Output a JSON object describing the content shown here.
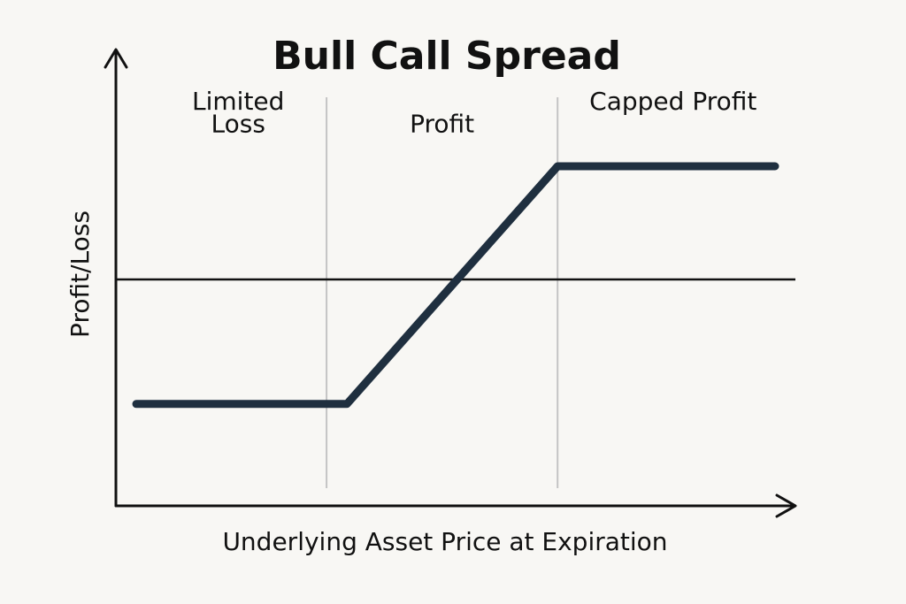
{
  "chart_data": {
    "type": "line",
    "title": "Bull Call Spread",
    "xlabel": "Underlying Asset Price at Expiration",
    "ylabel": "Profit/Loss",
    "grid": false,
    "legend": "none",
    "xlim": [
      0,
      100
    ],
    "ylim": [
      -10,
      10
    ],
    "zero_line": 0,
    "dividers": [
      31,
      65
    ],
    "regions": [
      {
        "lines": [
          "Limited",
          "Loss"
        ],
        "x": 18,
        "y": [
          7.5,
          6.5
        ]
      },
      {
        "lines": [
          "Profit"
        ],
        "x": 48,
        "y": [
          6.5
        ]
      },
      {
        "lines": [
          "Capped Profit"
        ],
        "x": 82,
        "y": [
          7.5
        ]
      }
    ],
    "series": [
      {
        "x": [
          3,
          34,
          65,
          97
        ],
        "y": [
          -5.5,
          -5.5,
          5.0,
          5.0
        ],
        "color": "#1f2f3f"
      }
    ]
  }
}
